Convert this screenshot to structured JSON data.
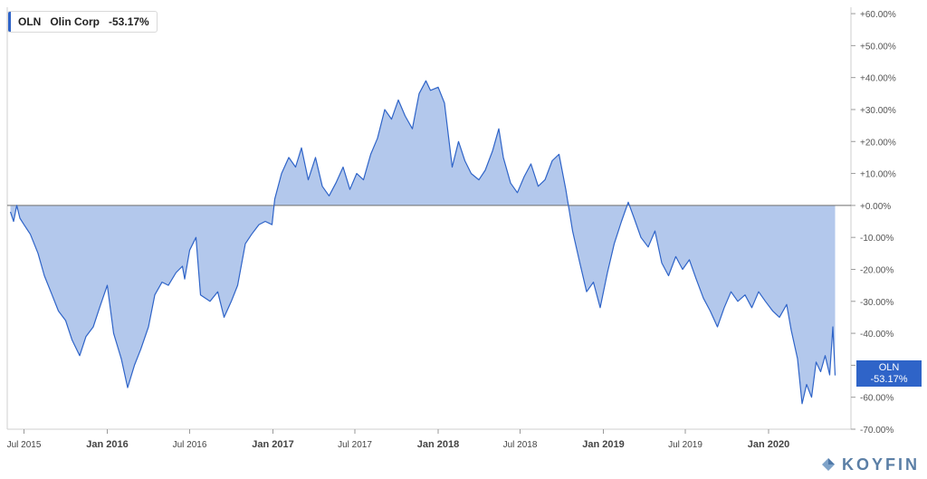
{
  "legend": {
    "ticker": "OLN",
    "name": "Olin Corp",
    "change": "-53.17%"
  },
  "last_tag": {
    "ticker": "OLN",
    "value": "-53.17%"
  },
  "brand": "KOYFIN",
  "colors": {
    "line": "#2f64c8",
    "fill": "#b3c8ec",
    "zero": "#6e6e6e",
    "grid": "#e6e6e6",
    "tag": "#2f64c8"
  },
  "chart_data": {
    "type": "area",
    "series": [
      {
        "name": "OLN",
        "points": [
          [
            "2015-06-01",
            -2
          ],
          [
            "2015-06-08",
            -5
          ],
          [
            "2015-06-15",
            0
          ],
          [
            "2015-06-22",
            -4
          ],
          [
            "2015-07-01",
            -6
          ],
          [
            "2015-07-15",
            -9
          ],
          [
            "2015-08-01",
            -15
          ],
          [
            "2015-08-15",
            -22
          ],
          [
            "2015-09-01",
            -28
          ],
          [
            "2015-09-15",
            -33
          ],
          [
            "2015-10-01",
            -36
          ],
          [
            "2015-10-15",
            -42
          ],
          [
            "2015-11-01",
            -47
          ],
          [
            "2015-11-15",
            -41
          ],
          [
            "2015-12-01",
            -38
          ],
          [
            "2015-12-15",
            -32
          ],
          [
            "2016-01-01",
            -25
          ],
          [
            "2016-01-15",
            -40
          ],
          [
            "2016-02-01",
            -48
          ],
          [
            "2016-02-15",
            -57
          ],
          [
            "2016-03-01",
            -50
          ],
          [
            "2016-03-15",
            -45
          ],
          [
            "2016-04-01",
            -38
          ],
          [
            "2016-04-15",
            -28
          ],
          [
            "2016-05-01",
            -24
          ],
          [
            "2016-05-15",
            -25
          ],
          [
            "2016-06-01",
            -21
          ],
          [
            "2016-06-15",
            -19
          ],
          [
            "2016-06-20",
            -23
          ],
          [
            "2016-07-01",
            -14
          ],
          [
            "2016-07-15",
            -10
          ],
          [
            "2016-07-25",
            -28
          ],
          [
            "2016-08-15",
            -30
          ],
          [
            "2016-09-01",
            -27
          ],
          [
            "2016-09-15",
            -35
          ],
          [
            "2016-10-01",
            -30
          ],
          [
            "2016-10-15",
            -25
          ],
          [
            "2016-11-01",
            -12
          ],
          [
            "2016-11-15",
            -9
          ],
          [
            "2016-12-01",
            -6
          ],
          [
            "2016-12-15",
            -5
          ],
          [
            "2016-12-30",
            -6
          ],
          [
            "2017-01-05",
            2
          ],
          [
            "2017-01-20",
            10
          ],
          [
            "2017-02-05",
            15
          ],
          [
            "2017-02-20",
            12
          ],
          [
            "2017-03-05",
            18
          ],
          [
            "2017-03-20",
            8
          ],
          [
            "2017-04-05",
            15
          ],
          [
            "2017-04-20",
            6
          ],
          [
            "2017-05-05",
            3
          ],
          [
            "2017-05-20",
            7
          ],
          [
            "2017-06-05",
            12
          ],
          [
            "2017-06-20",
            5
          ],
          [
            "2017-07-05",
            10
          ],
          [
            "2017-07-20",
            8
          ],
          [
            "2017-08-05",
            16
          ],
          [
            "2017-08-20",
            21
          ],
          [
            "2017-09-05",
            30
          ],
          [
            "2017-09-20",
            27
          ],
          [
            "2017-10-05",
            33
          ],
          [
            "2017-10-20",
            28
          ],
          [
            "2017-11-05",
            24
          ],
          [
            "2017-11-20",
            35
          ],
          [
            "2017-12-05",
            39
          ],
          [
            "2017-12-15",
            36
          ],
          [
            "2018-01-01",
            37
          ],
          [
            "2018-01-15",
            32
          ],
          [
            "2018-02-01",
            12
          ],
          [
            "2018-02-15",
            20
          ],
          [
            "2018-03-01",
            14
          ],
          [
            "2018-03-15",
            10
          ],
          [
            "2018-04-01",
            8
          ],
          [
            "2018-04-15",
            11
          ],
          [
            "2018-05-01",
            17
          ],
          [
            "2018-05-15",
            24
          ],
          [
            "2018-05-25",
            15
          ],
          [
            "2018-06-10",
            7
          ],
          [
            "2018-06-25",
            4
          ],
          [
            "2018-07-10",
            9
          ],
          [
            "2018-07-25",
            13
          ],
          [
            "2018-08-10",
            6
          ],
          [
            "2018-08-25",
            8
          ],
          [
            "2018-09-10",
            14
          ],
          [
            "2018-09-25",
            16
          ],
          [
            "2018-10-10",
            5
          ],
          [
            "2018-10-25",
            -8
          ],
          [
            "2018-11-10",
            -18
          ],
          [
            "2018-11-25",
            -27
          ],
          [
            "2018-12-10",
            -24
          ],
          [
            "2018-12-25",
            -32
          ],
          [
            "2019-01-10",
            -21
          ],
          [
            "2019-01-25",
            -12
          ],
          [
            "2019-02-10",
            -5
          ],
          [
            "2019-02-25",
            1
          ],
          [
            "2019-03-10",
            -4
          ],
          [
            "2019-03-25",
            -10
          ],
          [
            "2019-04-10",
            -13
          ],
          [
            "2019-04-25",
            -8
          ],
          [
            "2019-05-10",
            -18
          ],
          [
            "2019-05-25",
            -22
          ],
          [
            "2019-06-10",
            -16
          ],
          [
            "2019-06-25",
            -20
          ],
          [
            "2019-07-10",
            -17
          ],
          [
            "2019-07-25",
            -23
          ],
          [
            "2019-08-10",
            -29
          ],
          [
            "2019-08-25",
            -33
          ],
          [
            "2019-09-10",
            -38
          ],
          [
            "2019-09-25",
            -32
          ],
          [
            "2019-10-10",
            -27
          ],
          [
            "2019-10-25",
            -30
          ],
          [
            "2019-11-10",
            -28
          ],
          [
            "2019-11-25",
            -32
          ],
          [
            "2019-12-10",
            -27
          ],
          [
            "2019-12-25",
            -30
          ],
          [
            "2020-01-10",
            -33
          ],
          [
            "2020-01-25",
            -35
          ],
          [
            "2020-02-10",
            -31
          ],
          [
            "2020-02-20",
            -39
          ],
          [
            "2020-03-05",
            -48
          ],
          [
            "2020-03-15",
            -62
          ],
          [
            "2020-03-25",
            -56
          ],
          [
            "2020-04-05",
            -60
          ],
          [
            "2020-04-15",
            -49
          ],
          [
            "2020-04-25",
            -52
          ],
          [
            "2020-05-05",
            -47
          ],
          [
            "2020-05-15",
            -53
          ],
          [
            "2020-05-22",
            -38
          ],
          [
            "2020-05-27",
            -53.17
          ]
        ]
      }
    ],
    "x_ticks": [
      [
        "2015-07-01",
        "Jul 2015"
      ],
      [
        "2016-01-01",
        "Jan 2016"
      ],
      [
        "2016-07-01",
        "Jul 2016"
      ],
      [
        "2017-01-01",
        "Jan 2017"
      ],
      [
        "2017-07-01",
        "Jul 2017"
      ],
      [
        "2018-01-01",
        "Jan 2018"
      ],
      [
        "2018-07-01",
        "Jul 2018"
      ],
      [
        "2019-01-01",
        "Jan 2019"
      ],
      [
        "2019-07-01",
        "Jul 2019"
      ],
      [
        "2020-01-01",
        "Jan 2020"
      ]
    ],
    "y_ticks": [
      60,
      50,
      40,
      30,
      20,
      10,
      0,
      -10,
      -20,
      -30,
      -40,
      -50,
      -60,
      -70
    ],
    "y_tick_labels": [
      "+60.00%",
      "+50.00%",
      "+40.00%",
      "+30.00%",
      "+20.00%",
      "+10.00%",
      "+0.00%",
      "-10.00%",
      "-20.00%",
      "-30.00%",
      "-40.00%",
      "-50.00%",
      "-60.00%",
      "-70.00%"
    ],
    "xlim": [
      "2015-05-25",
      "2020-07-01"
    ],
    "ylim": [
      -70,
      62
    ],
    "grid": false
  }
}
